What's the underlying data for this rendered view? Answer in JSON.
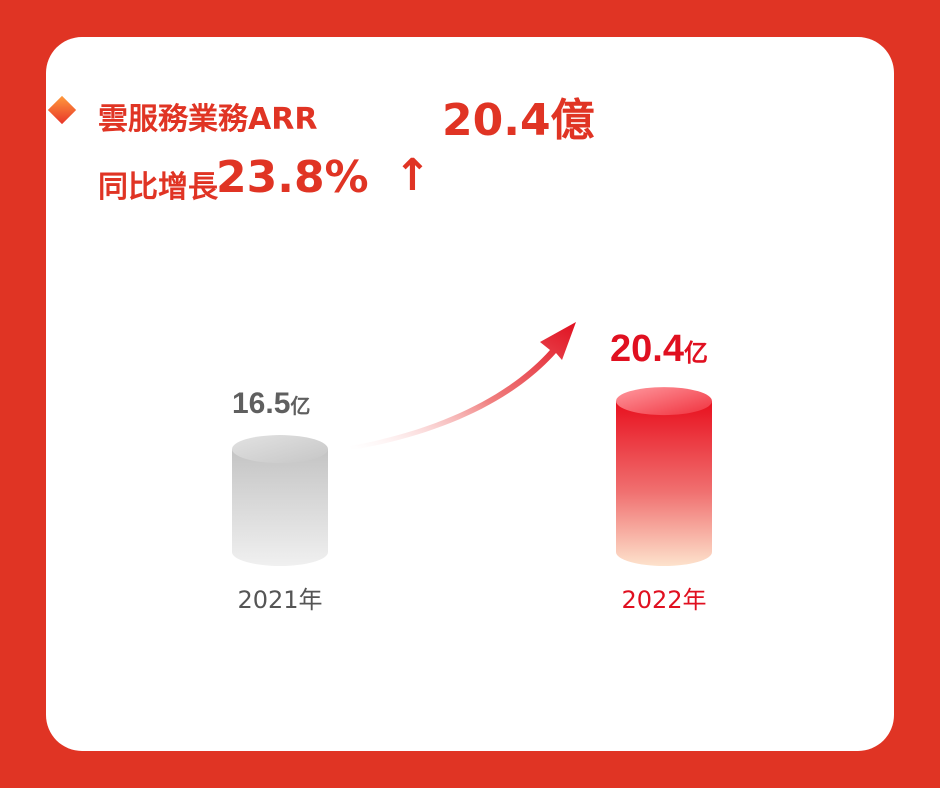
{
  "headline": {
    "line1_label": "雲服務業務ARR",
    "line1_value": "20.4億",
    "line2_label": "同比增長",
    "line2_value": "23.8%",
    "arrow": "↑"
  },
  "colors": {
    "background": "#e03424",
    "card": "#ffffff",
    "accent": "#e03424",
    "bar_2022": "#e01020",
    "bar_2021": "#c8c8c8"
  },
  "chart_data": {
    "type": "bar",
    "categories": [
      "2021年",
      "2022年"
    ],
    "values": [
      16.5,
      20.4
    ],
    "data_labels": [
      {
        "number": "16.5",
        "unit": "亿"
      },
      {
        "number": "20.4",
        "unit": "亿"
      }
    ],
    "title": "",
    "xlabel": "",
    "ylabel": "",
    "grid": false,
    "legend": "none",
    "trend_arrow": true
  }
}
